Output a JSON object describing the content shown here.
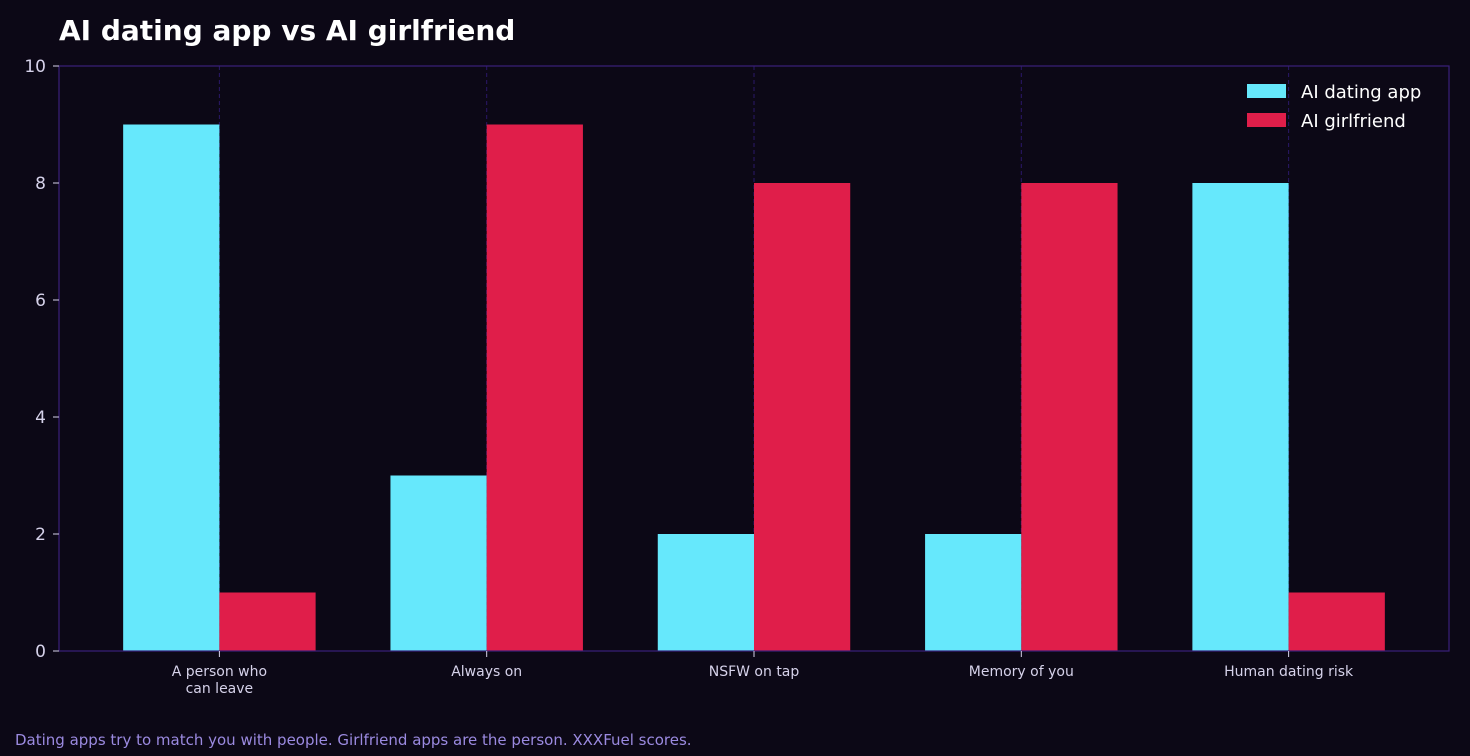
{
  "chart_data": {
    "type": "bar",
    "title": "AI dating app vs AI girlfriend",
    "xlabel": "",
    "ylabel": "",
    "categories": [
      "A person who\ncan leave",
      "Always on",
      "NSFW on tap",
      "Memory of you",
      "Human dating risk"
    ],
    "series": [
      {
        "name": "AI dating app",
        "color": "#66e8fc",
        "values": [
          9,
          3,
          2,
          2,
          8
        ]
      },
      {
        "name": "AI girlfriend",
        "color": "#e01e4a",
        "values": [
          1,
          9,
          8,
          8,
          1
        ]
      }
    ],
    "ylim": [
      0,
      10
    ],
    "yticks": [
      0,
      2,
      4,
      6,
      8,
      10
    ],
    "grid": "vertical",
    "legend_position": "top-right"
  },
  "footnote": "Dating apps try to match you with people. Girlfriend apps are the person. XXXFuel scores.",
  "colors": {
    "background": "#0c0816",
    "axis": "#3a1f7a",
    "grid": "#2a1868",
    "tick_text": "#d6d2ea",
    "footnote": "#9b8ae0"
  }
}
